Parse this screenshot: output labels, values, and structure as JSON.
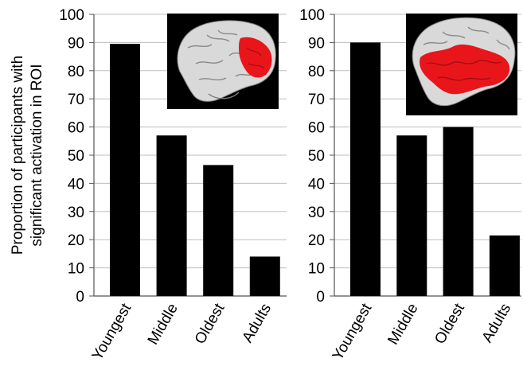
{
  "chart_data": [
    {
      "type": "bar",
      "categories": [
        "Youngest",
        "Middle",
        "Oldest",
        "Adults"
      ],
      "values": [
        89.5,
        57,
        46.5,
        14
      ],
      "ylabel": "Proportion of participants with significant activation in ROI",
      "ylabel_lines": [
        "Proportion of participants with",
        "significant activation in ROI"
      ],
      "ylim": [
        0,
        100
      ],
      "yticks": [
        0,
        10,
        20,
        30,
        40,
        50,
        60,
        70,
        80,
        90,
        100
      ],
      "grid": true,
      "bar_color": "#000000",
      "inset": "brain-render-left-hemisphere-frontal-activation"
    },
    {
      "type": "bar",
      "categories": [
        "Youngest",
        "Middle",
        "Oldest",
        "Adults"
      ],
      "values": [
        90,
        57,
        60,
        21.5
      ],
      "ylim": [
        0,
        100
      ],
      "yticks": [
        0,
        10,
        20,
        30,
        40,
        50,
        60,
        70,
        80,
        90,
        100
      ],
      "grid": true,
      "bar_color": "#000000",
      "inset": "brain-render-left-hemisphere-temporal-activation"
    }
  ],
  "colors": {
    "bar": "#000000",
    "grid": "#bdbdbd",
    "activation": "#e8161b",
    "inset_bg": "#000000"
  }
}
